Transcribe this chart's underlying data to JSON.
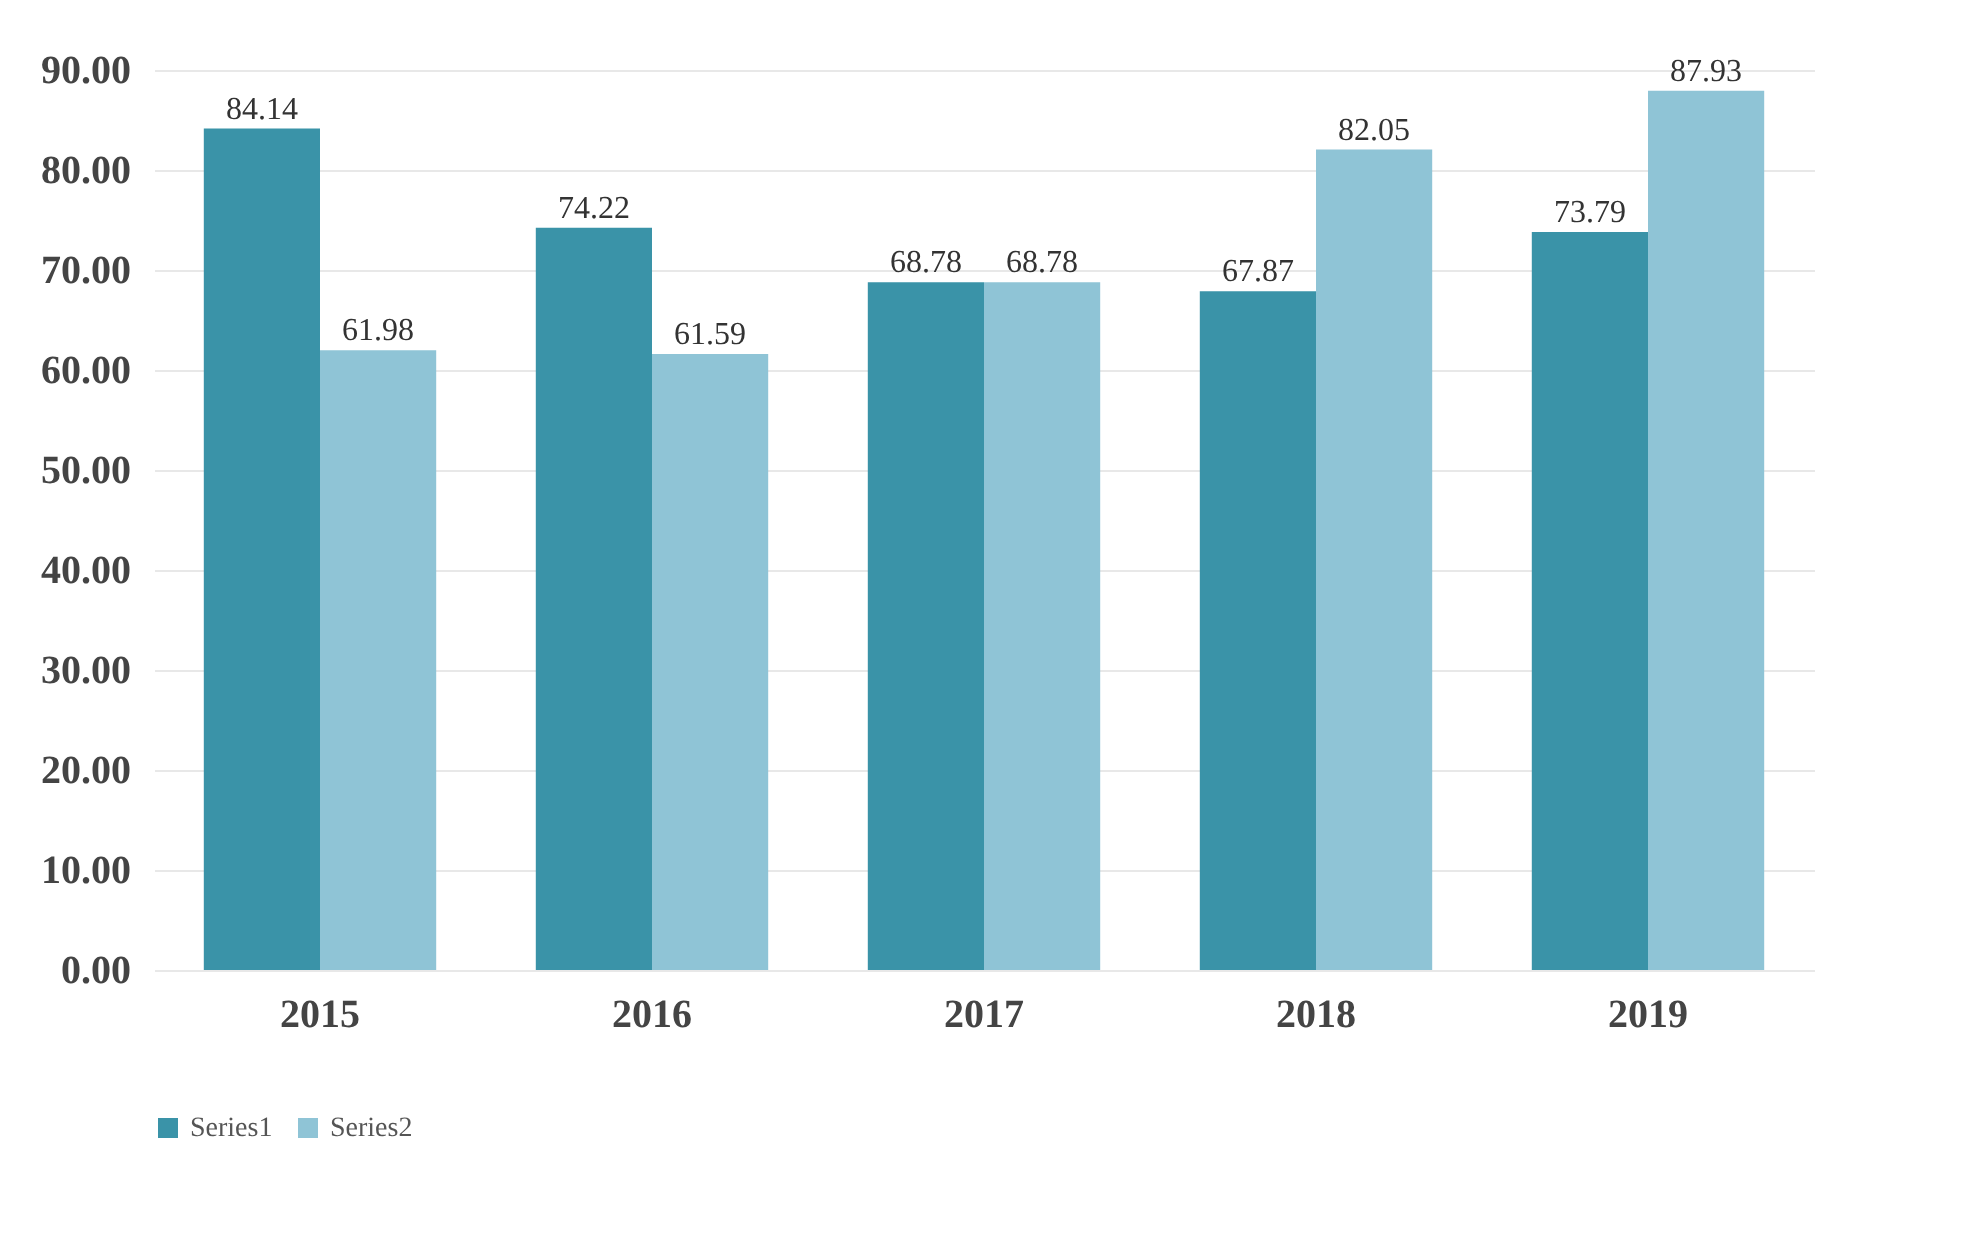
{
  "chart_data": {
    "type": "bar",
    "categories": [
      "2015",
      "2016",
      "2017",
      "2018",
      "2019"
    ],
    "series": [
      {
        "name": "Series1",
        "color": "#3a93a8",
        "values": [
          84.14,
          74.22,
          68.78,
          67.87,
          73.79
        ]
      },
      {
        "name": "Series2",
        "color": "#8fc4d6",
        "values": [
          61.98,
          61.59,
          68.78,
          82.05,
          87.93
        ]
      }
    ],
    "ylim": [
      0,
      90
    ],
    "yticks": [
      {
        "value": 0,
        "label": "0.00"
      },
      {
        "value": 10,
        "label": "10.00"
      },
      {
        "value": 20,
        "label": "20.00"
      },
      {
        "value": 30,
        "label": "30.00"
      },
      {
        "value": 40,
        "label": "40.00"
      },
      {
        "value": 50,
        "label": "50.00"
      },
      {
        "value": 60,
        "label": "60.00"
      },
      {
        "value": 70,
        "label": "70.00"
      },
      {
        "value": 80,
        "label": "80.00"
      },
      {
        "value": 90,
        "label": "90.00"
      }
    ],
    "grid": "y",
    "legend": "bottom",
    "data_labels": true
  }
}
